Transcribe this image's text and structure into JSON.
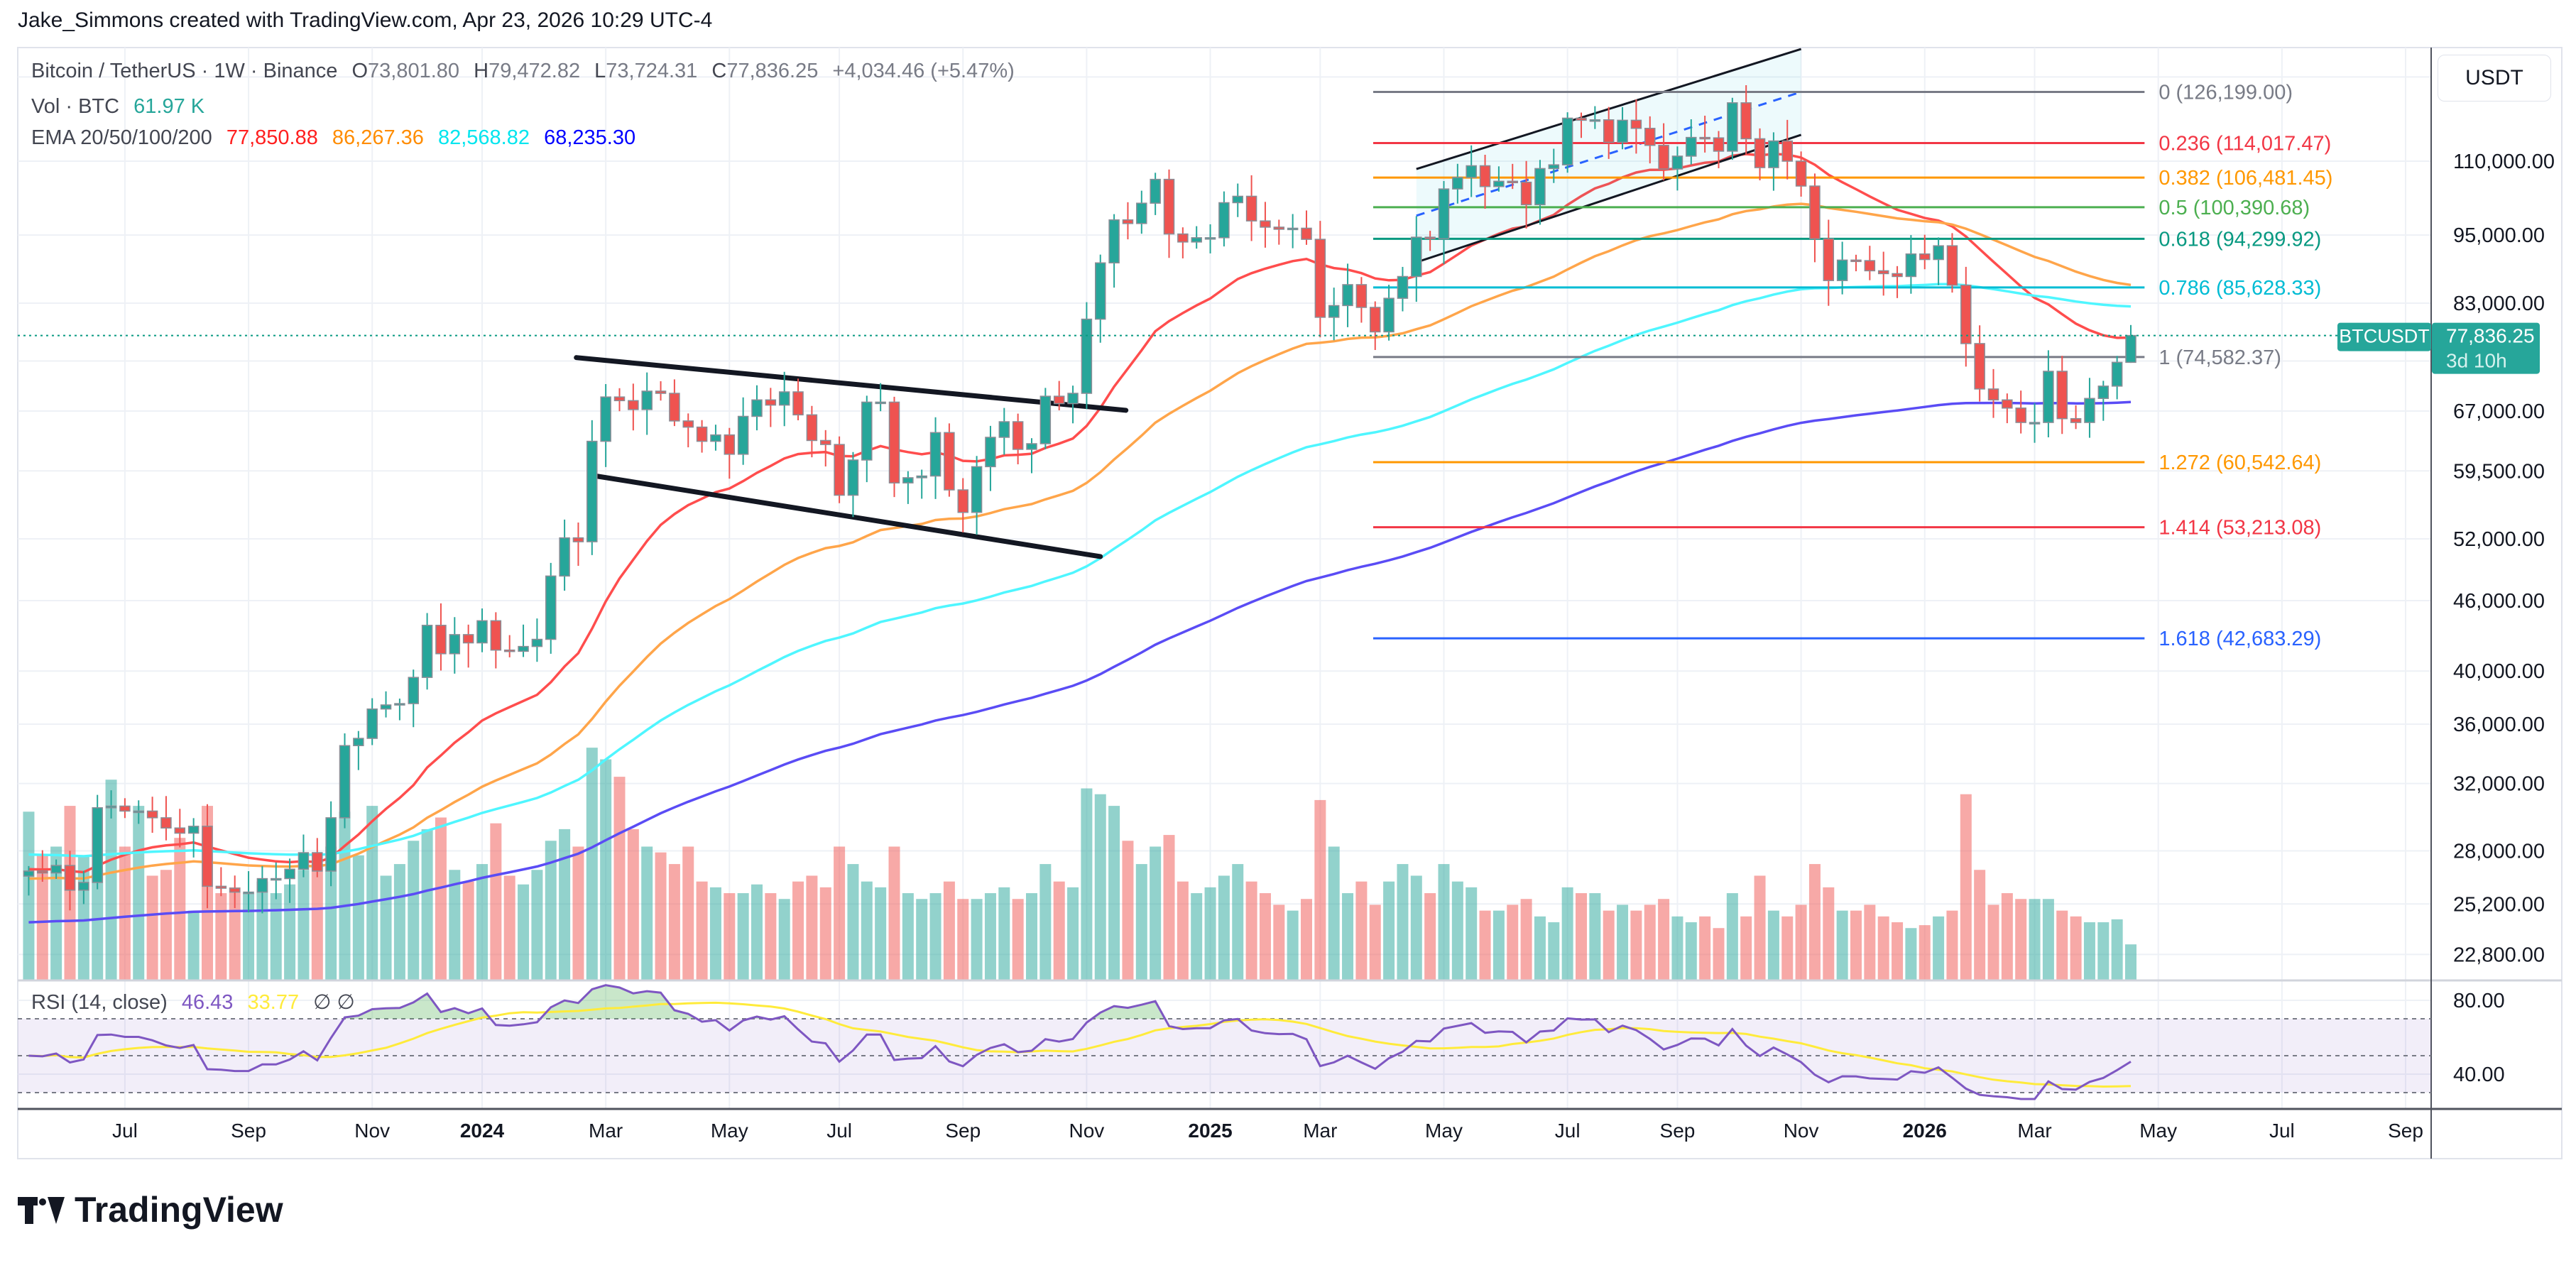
{
  "header": {
    "attribution": "Jake_Simmons created with TradingView.com, Apr 23, 2026 10:29 UTC-4"
  },
  "legend": {
    "symbol": "Bitcoin / TetherUS · 1W · Binance",
    "o_label": "O",
    "o_value": "73,801.80",
    "h_label": "H",
    "h_value": "79,472.82",
    "l_label": "L",
    "l_value": "73,724.31",
    "c_label": "C",
    "c_value": "77,836.25",
    "change": "+4,034.46 (+5.47%)",
    "vol_label": "Vol · BTC",
    "vol_value": "61.97 K",
    "ema_label": "EMA 20/50/100/200",
    "ema_values": [
      {
        "value": "77,850.88",
        "color": "#ff1f1f"
      },
      {
        "value": "86,267.36",
        "color": "#ff8c00"
      },
      {
        "value": "82,568.82",
        "color": "#00e5ee"
      },
      {
        "value": "68,235.30",
        "color": "#0000ff"
      }
    ],
    "rsi_label": "RSI (14, close)",
    "rsi_value": "46.43",
    "rsi_ma_value": "33.77",
    "rsi_extra": "∅  ∅"
  },
  "price_axis": {
    "currency": "USDT",
    "labels": [
      110000,
      95000,
      83000,
      67000,
      59500,
      52000,
      46000,
      40000,
      36000,
      32000,
      28000,
      25200,
      22800
    ],
    "label_text": [
      "110,000.00",
      "95,000.00",
      "83,000.00",
      "67,000.00",
      "59,500.00",
      "52,000.00",
      "46,000.00",
      "40,000.00",
      "36,000.00",
      "32,000.00",
      "28,000.00",
      "25,200.00",
      "22,800.00"
    ],
    "scale": "log",
    "current_symbol": "BTCUSDT",
    "current_price": "77,836.25",
    "countdown": "3d 10h"
  },
  "rsi_axis": {
    "labels": [
      80,
      40
    ],
    "label_text": [
      "80.00",
      "40.00"
    ],
    "bands": [
      30,
      50,
      70
    ]
  },
  "time_axis": {
    "ticks": [
      {
        "label": "Jul",
        "month": "2023-07"
      },
      {
        "label": "Sep",
        "month": "2023-09"
      },
      {
        "label": "Nov",
        "month": "2023-11"
      },
      {
        "label": "2024",
        "month": "2024-01"
      },
      {
        "label": "Mar",
        "month": "2024-03"
      },
      {
        "label": "May",
        "month": "2024-05"
      },
      {
        "label": "Jul",
        "month": "2024-07"
      },
      {
        "label": "Sep",
        "month": "2024-09"
      },
      {
        "label": "Nov",
        "month": "2024-11"
      },
      {
        "label": "2025",
        "month": "2025-01"
      },
      {
        "label": "Mar",
        "month": "2025-03"
      },
      {
        "label": "May",
        "month": "2025-05"
      },
      {
        "label": "Jul",
        "month": "2025-07"
      },
      {
        "label": "Sep",
        "month": "2025-09"
      },
      {
        "label": "Nov",
        "month": "2025-11"
      },
      {
        "label": "2026",
        "month": "2026-01"
      },
      {
        "label": "Mar",
        "month": "2026-03"
      },
      {
        "label": "May",
        "month": "2026-05"
      },
      {
        "label": "Jul",
        "month": "2026-07"
      },
      {
        "label": "Sep",
        "month": "2026-09"
      }
    ]
  },
  "chart_data": {
    "type": "candlestick",
    "interval": "1W",
    "candles": {
      "first_week": "2023-05-15",
      "close": [
        26900,
        26800,
        27200,
        25900,
        26300,
        30500,
        30600,
        30300,
        30300,
        29900,
        29300,
        29000,
        29400,
        26100,
        26000,
        25800,
        25800,
        26500,
        26500,
        27000,
        27900,
        26900,
        29900,
        34500,
        35000,
        37100,
        37400,
        37500,
        39500,
        43800,
        41400,
        43000,
        42300,
        44200,
        41700,
        41600,
        42000,
        42600,
        48300,
        52100,
        51700,
        63100,
        68900,
        68400,
        67200,
        69700,
        69400,
        65700,
        64900,
        63100,
        63900,
        61500,
        66300,
        68500,
        67800,
        69600,
        66500,
        63200,
        62700,
        56700,
        60800,
        68200,
        68200,
        58100,
        58700,
        58900,
        64200,
        57300,
        54800,
        60000,
        63600,
        65600,
        62100,
        62800,
        69000,
        68000,
        69400,
        80400,
        89900,
        97900,
        97200,
        101200,
        106100,
        95200,
        93700,
        94500,
        94500,
        101300,
        102600,
        97700,
        96500,
        96100,
        96300,
        94200,
        80700,
        82600,
        86100,
        82300,
        78400,
        83800,
        87500,
        94600,
        94300,
        104100,
        106500,
        109000,
        104600,
        105700,
        105500,
        100900,
        108400,
        109200,
        119800,
        119300,
        119400,
        114200,
        119300,
        117400,
        113500,
        108300,
        111100,
        115300,
        115200,
        112200,
        123500,
        115000,
        108600,
        114500,
        110000,
        104700,
        94300,
        86800,
        90400,
        90300,
        88500,
        88000,
        87500,
        91500,
        90500,
        93000,
        86000,
        76600,
        70000,
        68500,
        67400,
        65500,
        65500,
        72500,
        66000,
        65500,
        68700,
        70400,
        73800,
        77836.25
      ],
      "last_candle": {
        "open": 73801.8,
        "high": 79472.82,
        "low": 73724.31,
        "close": 77836.25
      },
      "up_color": "#26a69a",
      "down_color": "#ef5350"
    },
    "volume_k_btc": [
      290,
      215,
      230,
      300,
      215,
      190,
      345,
      230,
      300,
      180,
      190,
      245,
      120,
      300,
      150,
      160,
      150,
      170,
      150,
      165,
      190,
      200,
      230,
      290,
      215,
      300,
      180,
      200,
      240,
      260,
      280,
      190,
      170,
      200,
      270,
      180,
      165,
      190,
      240,
      260,
      230,
      400,
      380,
      350,
      260,
      230,
      220,
      200,
      230,
      170,
      160,
      150,
      150,
      165,
      150,
      140,
      170,
      180,
      160,
      230,
      200,
      170,
      160,
      230,
      150,
      140,
      150,
      170,
      140,
      140,
      150,
      160,
      140,
      150,
      200,
      170,
      160,
      330,
      320,
      300,
      240,
      200,
      230,
      250,
      170,
      150,
      160,
      180,
      200,
      170,
      150,
      130,
      120,
      140,
      310,
      230,
      150,
      170,
      130,
      170,
      200,
      180,
      150,
      200,
      170,
      160,
      120,
      120,
      130,
      140,
      110,
      100,
      160,
      150,
      150,
      120,
      130,
      120,
      130,
      140,
      110,
      100,
      110,
      90,
      150,
      110,
      180,
      120,
      110,
      130,
      200,
      160,
      120,
      120,
      130,
      110,
      100,
      90,
      95,
      110,
      120,
      320,
      190,
      130,
      150,
      140,
      140,
      140,
      120,
      110,
      100,
      100,
      105,
      61.97
    ],
    "ema": [
      {
        "length": 20,
        "color": "#ff4d4d"
      },
      {
        "length": 50,
        "color": "#ffa54a"
      },
      {
        "length": 100,
        "color": "#4ff6ff"
      },
      {
        "length": 200,
        "color": "#5a4cf5"
      }
    ],
    "rsi": {
      "length": 14,
      "line_color": "#7e57c2",
      "ma_color": "#ffeb3b"
    },
    "fib": {
      "start": "2025-03-30",
      "end": "2026-04-27",
      "levels": [
        {
          "ratio": "0",
          "price": 126199.0,
          "text": "0 (126,199.00)",
          "color": "#787b86"
        },
        {
          "ratio": "0.236",
          "price": 114017.47,
          "text": "0.236 (114,017.47)",
          "color": "#f23645"
        },
        {
          "ratio": "0.382",
          "price": 106481.45,
          "text": "0.382 (106,481.45)",
          "color": "#ff9800"
        },
        {
          "ratio": "0.5",
          "price": 100390.68,
          "text": "0.5 (100,390.68)",
          "color": "#4caf50"
        },
        {
          "ratio": "0.618",
          "price": 94299.92,
          "text": "0.618 (94,299.92)",
          "color": "#089981"
        },
        {
          "ratio": "0.786",
          "price": 85628.33,
          "text": "0.786 (85,628.33)",
          "color": "#00bcd4"
        },
        {
          "ratio": "1",
          "price": 74582.37,
          "text": "1 (74,582.37)",
          "color": "#787b86"
        },
        {
          "ratio": "1.272",
          "price": 60542.64,
          "text": "1.272 (60,542.64)",
          "color": "#ff9800"
        },
        {
          "ratio": "1.414",
          "price": 53213.08,
          "text": "1.414 (53,213.08)",
          "color": "#f23645"
        },
        {
          "ratio": "1.618",
          "price": 42683.29,
          "text": "1.618 (42,683.29)",
          "color": "#2962ff"
        }
      ]
    },
    "drawings": {
      "wedge_upper": [
        {
          "date": "2024-02-18",
          "price": 74500
        },
        {
          "date": "2024-11-24",
          "price": 67100
        }
      ],
      "wedge_lower": [
        {
          "date": "2024-02-28",
          "price": 58900
        },
        {
          "date": "2024-11-11",
          "price": 50200
        }
      ],
      "channel_upper": [
        {
          "date": "2025-04-21",
          "price": 108300
        },
        {
          "date": "2025-11-03",
          "price": 137400
        }
      ],
      "channel_lower": [
        {
          "date": "2025-04-21",
          "price": 90000
        },
        {
          "date": "2025-11-03",
          "price": 115900
        }
      ]
    }
  },
  "branding": {
    "logo_text": "TradingView"
  }
}
